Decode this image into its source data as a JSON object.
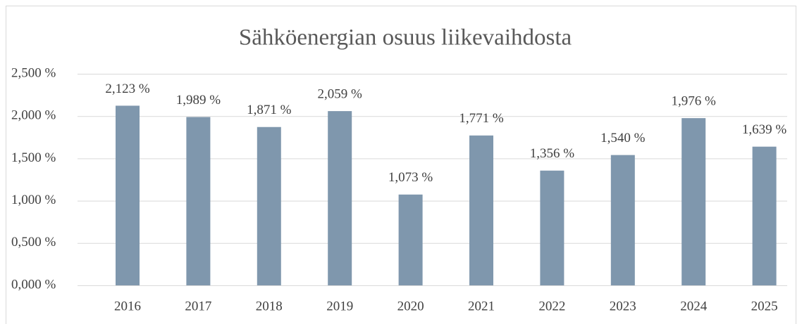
{
  "chart_data": {
    "type": "bar",
    "title": "Sähköenergian osuus liikevaihdosta",
    "categories": [
      "2016",
      "2017",
      "2018",
      "2019",
      "2020",
      "2021",
      "2022",
      "2023",
      "2024",
      "2025"
    ],
    "values": [
      2.123,
      1.989,
      1.871,
      2.059,
      1.073,
      1.771,
      1.356,
      1.54,
      1.976,
      1.639
    ],
    "value_labels": [
      "2,123 %",
      "1,989 %",
      "1,871 %",
      "2,059 %",
      "1,073 %",
      "1,771 %",
      "1,356 %",
      "1,540 %",
      "1,976 %",
      "1,639 %"
    ],
    "color": "#7f97ad",
    "ylim": [
      0,
      2.5
    ],
    "yticks": [
      {
        "value": 0,
        "label": "0,000 %"
      },
      {
        "value": 0.5,
        "label": "0,500 %"
      },
      {
        "value": 1,
        "label": "1,000 %"
      },
      {
        "value": 1.5,
        "label": "1,500 %"
      },
      {
        "value": 2,
        "label": "2,000 %"
      },
      {
        "value": 2.5,
        "label": "2,500 %"
      }
    ],
    "grid": true
  }
}
